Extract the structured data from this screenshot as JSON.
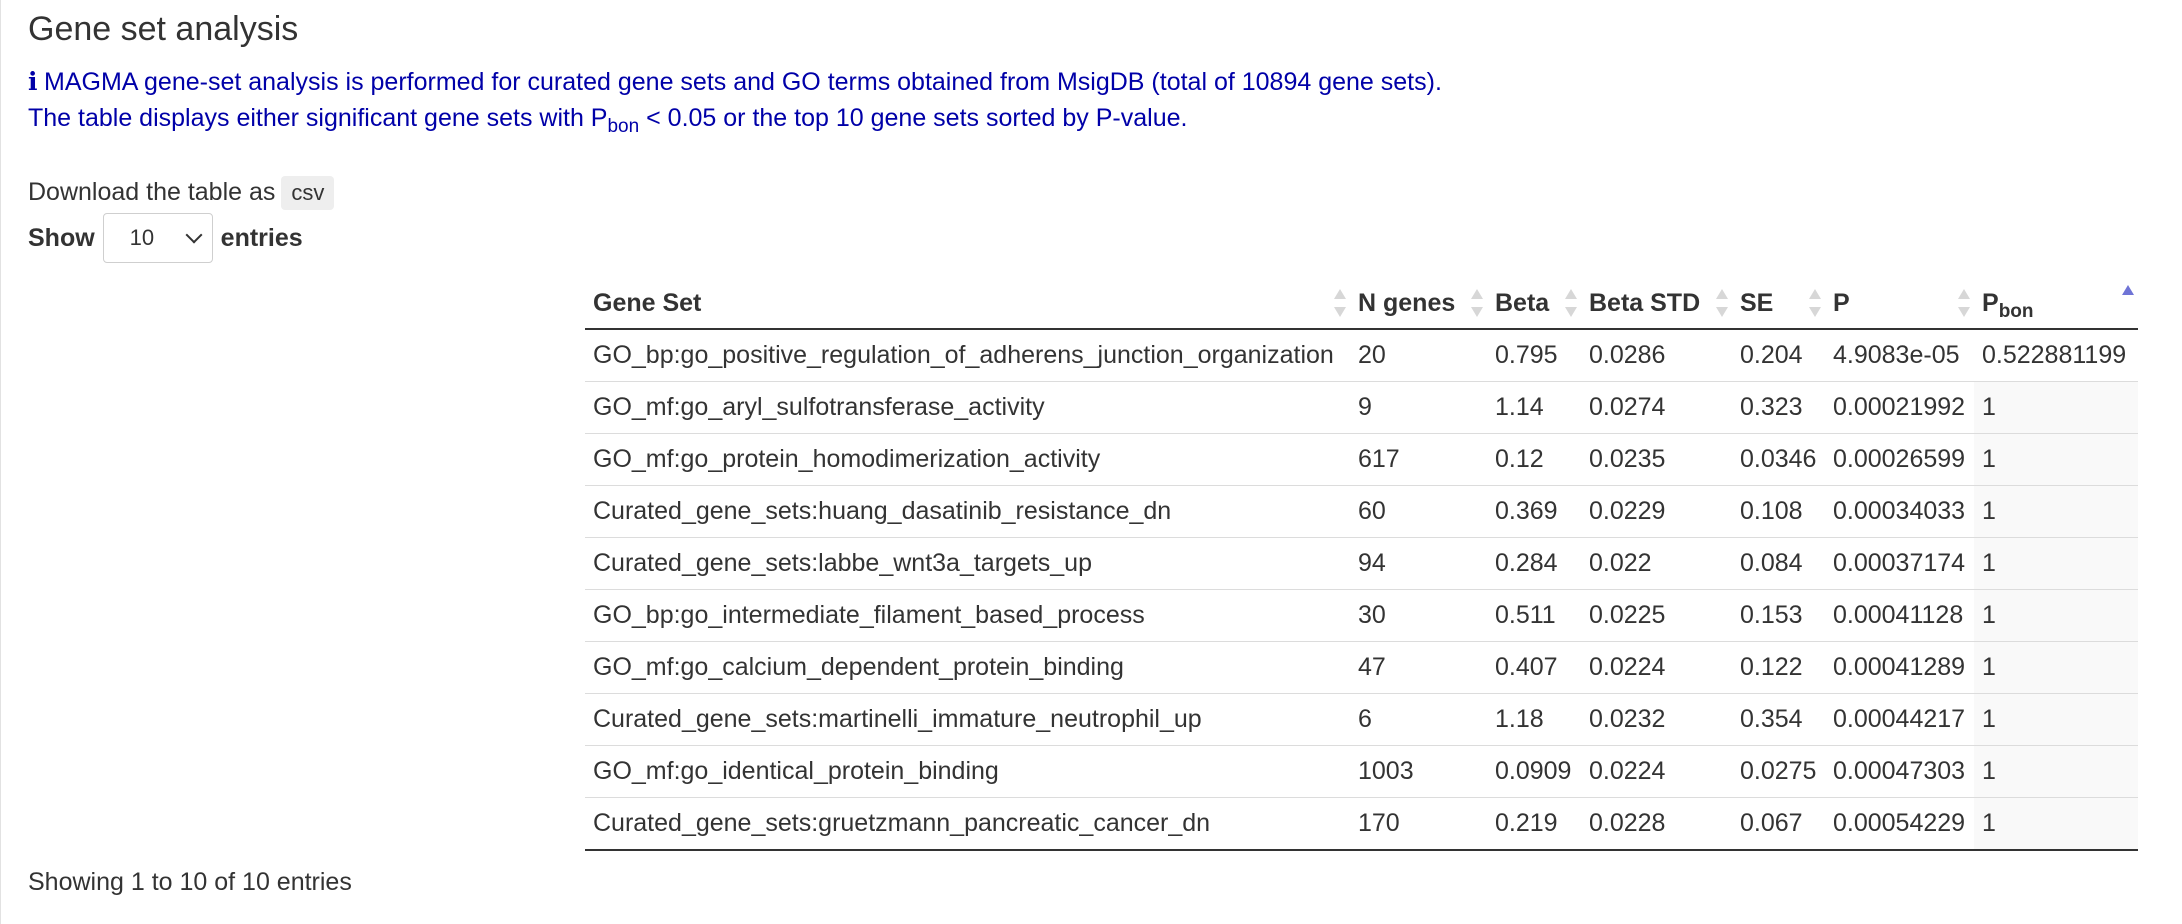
{
  "page": {
    "title": "Gene set analysis",
    "info": {
      "line1": "MAGMA gene-set analysis is performed for curated gene sets and GO terms obtained from MsigDB (total of 10894 gene sets).",
      "line2_prefix": "The table displays either significant gene sets with P",
      "line2_sub": "bon",
      "line2_suffix": " < 0.05 or the top 10 gene sets sorted by P-value."
    },
    "download_label": "Download the table as",
    "csv_label": "csv",
    "show_label": "Show",
    "show_value": "10",
    "entries_label": "entries",
    "footer": "Showing 1 to 10 of 10 entries"
  },
  "colors": {
    "info_text": "#0000a8",
    "sort_active": "#6f74d6",
    "sort_inactive": "#d7d7d7"
  },
  "table": {
    "columns": [
      "Gene Set",
      "N genes",
      "Beta",
      "Beta STD",
      "SE",
      "P",
      "P"
    ],
    "sorted_column_sub": "bon",
    "rows": [
      [
        "GO_bp:go_positive_regulation_of_adherens_junction_organization",
        "20",
        "0.795",
        "0.0286",
        "0.204",
        "4.9083e-05",
        "0.522881199"
      ],
      [
        "GO_mf:go_aryl_sulfotransferase_activity",
        "9",
        "1.14",
        "0.0274",
        "0.323",
        "0.00021992",
        "1"
      ],
      [
        "GO_mf:go_protein_homodimerization_activity",
        "617",
        "0.12",
        "0.0235",
        "0.0346",
        "0.00026599",
        "1"
      ],
      [
        "Curated_gene_sets:huang_dasatinib_resistance_dn",
        "60",
        "0.369",
        "0.0229",
        "0.108",
        "0.00034033",
        "1"
      ],
      [
        "Curated_gene_sets:labbe_wnt3a_targets_up",
        "94",
        "0.284",
        "0.022",
        "0.084",
        "0.00037174",
        "1"
      ],
      [
        "GO_bp:go_intermediate_filament_based_process",
        "30",
        "0.511",
        "0.0225",
        "0.153",
        "0.00041128",
        "1"
      ],
      [
        "GO_mf:go_calcium_dependent_protein_binding",
        "47",
        "0.407",
        "0.0224",
        "0.122",
        "0.00041289",
        "1"
      ],
      [
        "Curated_gene_sets:martinelli_immature_neutrophil_up",
        "6",
        "1.18",
        "0.0232",
        "0.354",
        "0.00044217",
        "1"
      ],
      [
        "GO_mf:go_identical_protein_binding",
        "1003",
        "0.0909",
        "0.0224",
        "0.0275",
        "0.00047303",
        "1"
      ],
      [
        "Curated_gene_sets:gruetzmann_pancreatic_cancer_dn",
        "170",
        "0.219",
        "0.0228",
        "0.067",
        "0.00054229",
        "1"
      ]
    ]
  }
}
